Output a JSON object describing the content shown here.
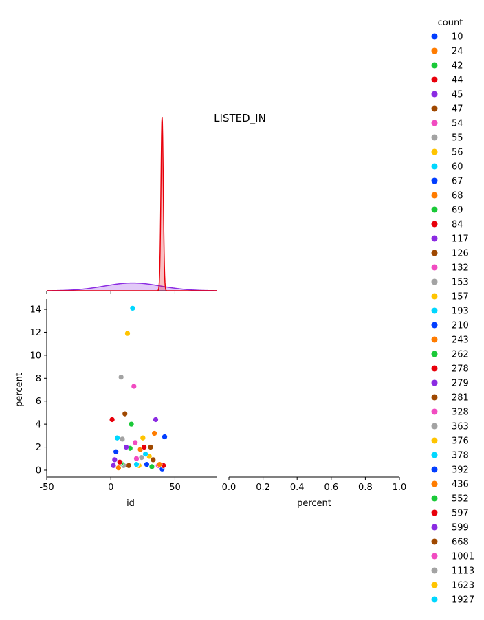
{
  "chart_data": {
    "type": "scatter",
    "title": "LISTED_IN",
    "xlabel": "id",
    "ylabel": "percent",
    "xlim": [
      -50,
      83
    ],
    "ylim": [
      -0.6,
      14.9
    ],
    "x_ticks": [
      -50,
      0,
      50
    ],
    "y_ticks": [
      0,
      2,
      4,
      6,
      8,
      10,
      12,
      14
    ],
    "grid": false,
    "legend_title": "count",
    "legend_placement": "right",
    "series": [
      {
        "name": "10",
        "color": "#023eff",
        "x": 40,
        "y": 0.1
      },
      {
        "name": "24",
        "color": "#ff7c00",
        "x": 6,
        "y": 0.2
      },
      {
        "name": "42",
        "color": "#1ac938",
        "x": 32,
        "y": 0.3
      },
      {
        "name": "44",
        "color": "#e8000b",
        "x": 41,
        "y": 0.4
      },
      {
        "name": "45",
        "color": "#8b2be2",
        "x": 2,
        "y": 0.4
      },
      {
        "name": "47",
        "color": "#9f4800",
        "x": 14,
        "y": 0.4
      },
      {
        "name": "54",
        "color": "#f14cc1",
        "x": 37,
        "y": 0.4
      },
      {
        "name": "55",
        "color": "#a3a3a3",
        "x": 10,
        "y": 0.4
      },
      {
        "name": "56",
        "color": "#ffc400",
        "x": 22,
        "y": 0.4
      },
      {
        "name": "60",
        "color": "#00d7ff",
        "x": 20,
        "y": 0.5
      },
      {
        "name": "67",
        "color": "#023eff",
        "x": 28,
        "y": 0.5
      },
      {
        "name": "68",
        "color": "#ff7c00",
        "x": 38,
        "y": 0.5
      },
      {
        "name": "69",
        "color": "#1ac938",
        "x": 8,
        "y": 0.6
      },
      {
        "name": "84",
        "color": "#e8000b",
        "x": 7,
        "y": 0.7
      },
      {
        "name": "117",
        "color": "#8b2be2",
        "x": 3,
        "y": 0.9
      },
      {
        "name": "126",
        "color": "#9f4800",
        "x": 33,
        "y": 0.9
      },
      {
        "name": "132",
        "color": "#f14cc1",
        "x": 20,
        "y": 1.0
      },
      {
        "name": "153",
        "color": "#a3a3a3",
        "x": 24,
        "y": 1.1
      },
      {
        "name": "157",
        "color": "#ffc400",
        "x": 30,
        "y": 1.2
      },
      {
        "name": "193",
        "color": "#00d7ff",
        "x": 27,
        "y": 1.4
      },
      {
        "name": "210",
        "color": "#023eff",
        "x": 4,
        "y": 1.6
      },
      {
        "name": "243",
        "color": "#ff7c00",
        "x": 23,
        "y": 1.8
      },
      {
        "name": "262",
        "color": "#1ac938",
        "x": 15,
        "y": 1.9
      },
      {
        "name": "278",
        "color": "#e8000b",
        "x": 26,
        "y": 2.0
      },
      {
        "name": "279",
        "color": "#8b2be2",
        "x": 12,
        "y": 2.0
      },
      {
        "name": "281",
        "color": "#9f4800",
        "x": 31,
        "y": 2.0
      },
      {
        "name": "328",
        "color": "#f14cc1",
        "x": 19,
        "y": 2.4
      },
      {
        "name": "363",
        "color": "#a3a3a3",
        "x": 9,
        "y": 2.7
      },
      {
        "name": "376",
        "color": "#ffc400",
        "x": 25,
        "y": 2.8
      },
      {
        "name": "378",
        "color": "#00d7ff",
        "x": 5,
        "y": 2.8
      },
      {
        "name": "392",
        "color": "#023eff",
        "x": 42,
        "y": 2.9
      },
      {
        "name": "436",
        "color": "#ff7c00",
        "x": 34,
        "y": 3.2
      },
      {
        "name": "552",
        "color": "#1ac938",
        "x": 16,
        "y": 4.0
      },
      {
        "name": "597",
        "color": "#e8000b",
        "x": 1,
        "y": 4.4
      },
      {
        "name": "599",
        "color": "#8b2be2",
        "x": 35,
        "y": 4.4
      },
      {
        "name": "668",
        "color": "#9f4800",
        "x": 11,
        "y": 4.9
      },
      {
        "name": "1001",
        "color": "#f14cc1",
        "x": 18,
        "y": 7.3
      },
      {
        "name": "1113",
        "color": "#a3a3a3",
        "x": 8,
        "y": 8.1
      },
      {
        "name": "1623",
        "color": "#ffc400",
        "x": 13,
        "y": 11.9
      },
      {
        "name": "1927",
        "color": "#00d7ff",
        "x": 17,
        "y": 14.1
      }
    ],
    "right_axis": {
      "xlabel": "percent",
      "x_ticks": [
        "0.0",
        "0.2",
        "0.4",
        "0.6",
        "0.8",
        "1.0"
      ]
    },
    "marginal_x": {
      "type": "kde",
      "curves": [
        {
          "color": "#8b2be2",
          "center": 17,
          "sigma": 22,
          "peak": 0.045
        },
        {
          "color": "#e8000b",
          "center": 40,
          "sigma": 0.9,
          "peak": 1.0
        }
      ]
    }
  }
}
